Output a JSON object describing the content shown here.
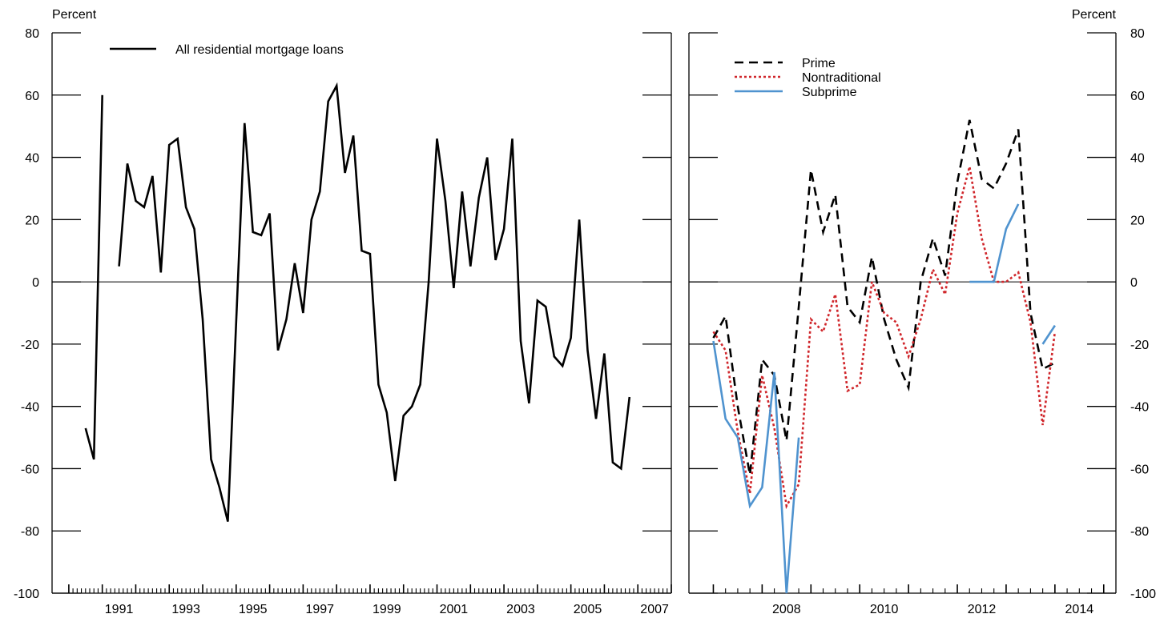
{
  "unit_label_left": "Percent",
  "unit_label_right": "Percent",
  "colors": {
    "all": "#000000",
    "prime": "#000000",
    "nontraditional": "#d0262b",
    "subprime": "#4f93cf"
  },
  "chart_data": [
    {
      "type": "line",
      "ylim": [
        -100,
        80
      ],
      "yticks": [
        -100,
        -80,
        -60,
        -40,
        -20,
        0,
        20,
        40,
        60,
        80
      ],
      "xlim": [
        1989.5,
        2008.0
      ],
      "xtick_labels": [
        "1991",
        "1993",
        "1995",
        "1997",
        "1999",
        "2001",
        "2003",
        "2005",
        "2007"
      ],
      "grid": false,
      "legend_position": "top-left",
      "series": [
        {
          "name": "All residential mortgage loans",
          "style": "solid",
          "segments": [
            [
              [
                1990.5,
                -47
              ],
              [
                1990.75,
                -57
              ],
              [
                1991.0,
                60
              ]
            ],
            [
              [
                1991.5,
                5
              ],
              [
                1991.75,
                38
              ],
              [
                1992.0,
                26
              ],
              [
                1992.25,
                24
              ],
              [
                1992.5,
                34
              ],
              [
                1992.75,
                3
              ],
              [
                1993.0,
                44
              ],
              [
                1993.25,
                46
              ],
              [
                1993.5,
                24
              ],
              [
                1993.75,
                17
              ],
              [
                1994.0,
                -12
              ],
              [
                1994.25,
                -57
              ],
              [
                1994.5,
                -66
              ],
              [
                1994.75,
                -77
              ],
              [
                1995.0,
                -13
              ],
              [
                1995.25,
                51
              ],
              [
                1995.5,
                16
              ],
              [
                1995.75,
                15
              ],
              [
                1996.0,
                22
              ],
              [
                1996.25,
                -22
              ],
              [
                1996.5,
                -12
              ],
              [
                1996.75,
                6
              ],
              [
                1997.0,
                -10
              ],
              [
                1997.25,
                20
              ],
              [
                1997.5,
                29
              ],
              [
                1997.75,
                58
              ],
              [
                1998.0,
                63
              ],
              [
                1998.25,
                35
              ],
              [
                1998.5,
                47
              ],
              [
                1998.75,
                10
              ],
              [
                1999.0,
                9
              ],
              [
                1999.25,
                -33
              ],
              [
                1999.5,
                -42
              ],
              [
                1999.75,
                -64
              ],
              [
                2000.0,
                -43
              ],
              [
                2000.25,
                -40
              ],
              [
                2000.5,
                -33
              ],
              [
                2000.75,
                0
              ],
              [
                2001.0,
                46
              ],
              [
                2001.25,
                26
              ],
              [
                2001.5,
                -2
              ],
              [
                2001.75,
                29
              ],
              [
                2002.0,
                5
              ],
              [
                2002.25,
                27
              ],
              [
                2002.5,
                40
              ],
              [
                2002.75,
                7
              ],
              [
                2003.0,
                17
              ],
              [
                2003.25,
                46
              ],
              [
                2003.5,
                -19
              ],
              [
                2003.75,
                -39
              ],
              [
                2004.0,
                -6
              ],
              [
                2004.25,
                -8
              ],
              [
                2004.5,
                -24
              ],
              [
                2004.75,
                -27
              ],
              [
                2005.0,
                -18
              ],
              [
                2005.25,
                20
              ],
              [
                2005.5,
                -22
              ],
              [
                2005.75,
                -44
              ],
              [
                2006.0,
                -23
              ],
              [
                2006.25,
                -58
              ],
              [
                2006.5,
                -60
              ],
              [
                2006.75,
                -37
              ]
            ]
          ]
        }
      ]
    },
    {
      "type": "line",
      "ylim": [
        -100,
        80
      ],
      "yticks": [
        -100,
        -80,
        -60,
        -40,
        -20,
        0,
        20,
        40,
        60,
        80
      ],
      "xlim": [
        2006.5,
        2015.25
      ],
      "xtick_labels": [
        "2008",
        "2010",
        "2012",
        "2014"
      ],
      "grid": false,
      "legend_position": "top-left",
      "series": [
        {
          "name": "Prime",
          "style": "dashed",
          "segments": [
            [
              [
                2007.0,
                -18
              ],
              [
                2007.25,
                -11
              ],
              [
                2007.5,
                -40
              ],
              [
                2007.75,
                -62
              ],
              [
                2008.0,
                -25
              ],
              [
                2008.25,
                -30
              ],
              [
                2008.5,
                -51
              ],
              [
                2008.75,
                -8
              ],
              [
                2009.0,
                36
              ],
              [
                2009.25,
                16
              ],
              [
                2009.5,
                28
              ],
              [
                2009.75,
                -8
              ],
              [
                2010.0,
                -13
              ],
              [
                2010.25,
                8
              ],
              [
                2010.5,
                -12
              ],
              [
                2010.75,
                -25
              ],
              [
                2011.0,
                -34
              ],
              [
                2011.25,
                0
              ],
              [
                2011.5,
                14
              ],
              [
                2011.75,
                2
              ],
              [
                2012.0,
                32
              ],
              [
                2012.25,
                52
              ],
              [
                2012.5,
                33
              ],
              [
                2012.75,
                30
              ],
              [
                2013.0,
                38
              ],
              [
                2013.25,
                49
              ],
              [
                2013.5,
                -10
              ],
              [
                2013.75,
                -28
              ],
              [
                2014.0,
                -26
              ]
            ]
          ]
        },
        {
          "name": "Nontraditional",
          "style": "dotted",
          "segments": [
            [
              [
                2007.0,
                -16
              ],
              [
                2007.25,
                -22
              ],
              [
                2007.5,
                -48
              ],
              [
                2007.75,
                -68
              ],
              [
                2008.0,
                -30
              ],
              [
                2008.25,
                -47
              ],
              [
                2008.5,
                -72
              ],
              [
                2008.75,
                -65
              ],
              [
                2009.0,
                -12
              ],
              [
                2009.25,
                -16
              ],
              [
                2009.5,
                -4
              ],
              [
                2009.75,
                -35
              ],
              [
                2010.0,
                -33
              ],
              [
                2010.25,
                0
              ],
              [
                2010.5,
                -10
              ],
              [
                2010.75,
                -13
              ],
              [
                2011.0,
                -24
              ],
              [
                2011.25,
                -12
              ],
              [
                2011.5,
                4
              ],
              [
                2011.75,
                -4
              ],
              [
                2012.0,
                22
              ],
              [
                2012.25,
                37
              ],
              [
                2012.5,
                14
              ],
              [
                2012.75,
                0
              ],
              [
                2013.0,
                0
              ],
              [
                2013.25,
                3
              ],
              [
                2013.5,
                -13
              ],
              [
                2013.75,
                -46
              ],
              [
                2014.0,
                -16
              ]
            ]
          ]
        },
        {
          "name": "Subprime",
          "style": "solid",
          "segments": [
            [
              [
                2007.0,
                -19
              ],
              [
                2007.25,
                -44
              ],
              [
                2007.5,
                -50
              ],
              [
                2007.75,
                -72
              ],
              [
                2008.0,
                -66
              ],
              [
                2008.25,
                -29
              ],
              [
                2008.5,
                -100
              ],
              [
                2008.75,
                -50
              ]
            ],
            [
              [
                2012.25,
                0
              ],
              [
                2012.5,
                0
              ],
              [
                2012.75,
                0
              ],
              [
                2013.0,
                17
              ],
              [
                2013.25,
                25
              ]
            ],
            [
              [
                2013.75,
                -20
              ],
              [
                2014.0,
                -14
              ]
            ]
          ]
        }
      ]
    }
  ]
}
